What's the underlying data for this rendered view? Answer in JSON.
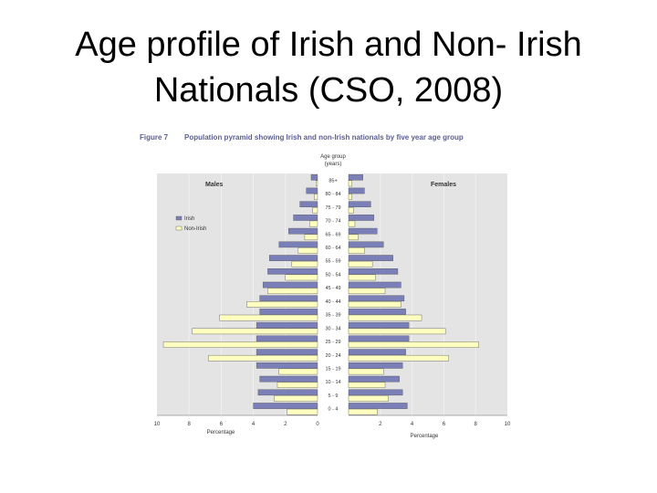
{
  "slide": {
    "title_line1": "Age profile of Irish and Non- Irish",
    "title_line2": "Nationals (CSO, 2008)"
  },
  "figure": {
    "label": "Figure 7",
    "caption": "Population pyramid showing Irish and non-Irish nationals by five year age group"
  },
  "chart_data": {
    "type": "bar",
    "orientation": "horizontal-pyramid",
    "title": "Population pyramid showing Irish and non-Irish nationals by five year age group",
    "center_label_line1": "Age group",
    "center_label_line2": "(years)",
    "left_group": "Males",
    "right_group": "Females",
    "xlabel": "Percentage",
    "xlim": [
      0,
      10
    ],
    "x_ticks": [
      "10",
      "8",
      "6",
      "4",
      "2",
      "0",
      "2",
      "4",
      "6",
      "8",
      "10"
    ],
    "legend": [
      "Irish",
      "Non-Irish"
    ],
    "legend_position": "left-upper",
    "colors": {
      "irish": "#7a7fb8",
      "nonirish": "#ffffc0",
      "background": "#e4e4e4",
      "outline": "#555555"
    },
    "categories": [
      "0 - 4",
      "5 - 9",
      "10 - 14",
      "15 - 19",
      "20 - 24",
      "25 - 29",
      "30 - 34",
      "35 - 39",
      "40 - 44",
      "45 - 49",
      "50 - 54",
      "55 - 59",
      "60 - 64",
      "65 - 69",
      "70 - 74",
      "75 - 79",
      "80 - 84",
      "85+"
    ],
    "series": [
      {
        "name": "Irish",
        "side": "Males",
        "values": [
          4.0,
          3.7,
          3.6,
          3.8,
          3.8,
          3.8,
          3.8,
          3.6,
          3.6,
          3.4,
          3.1,
          3.0,
          2.4,
          1.8,
          1.5,
          1.1,
          0.7,
          0.4
        ]
      },
      {
        "name": "Non-Irish",
        "side": "Males",
        "values": [
          1.9,
          2.7,
          2.5,
          2.4,
          6.8,
          9.6,
          7.8,
          6.1,
          4.4,
          3.1,
          2.0,
          1.6,
          1.2,
          0.8,
          0.5,
          0.3,
          0.2,
          0.1
        ]
      },
      {
        "name": "Irish",
        "side": "Females",
        "values": [
          3.7,
          3.4,
          3.2,
          3.4,
          3.6,
          3.8,
          3.8,
          3.6,
          3.5,
          3.3,
          3.1,
          2.8,
          2.2,
          1.8,
          1.6,
          1.4,
          1.0,
          0.9
        ]
      },
      {
        "name": "Non-Irish",
        "side": "Females",
        "values": [
          1.8,
          2.5,
          2.3,
          2.2,
          6.3,
          8.2,
          6.1,
          4.6,
          3.3,
          2.3,
          1.7,
          1.5,
          1.0,
          0.6,
          0.4,
          0.3,
          0.2,
          0.2
        ]
      }
    ]
  }
}
